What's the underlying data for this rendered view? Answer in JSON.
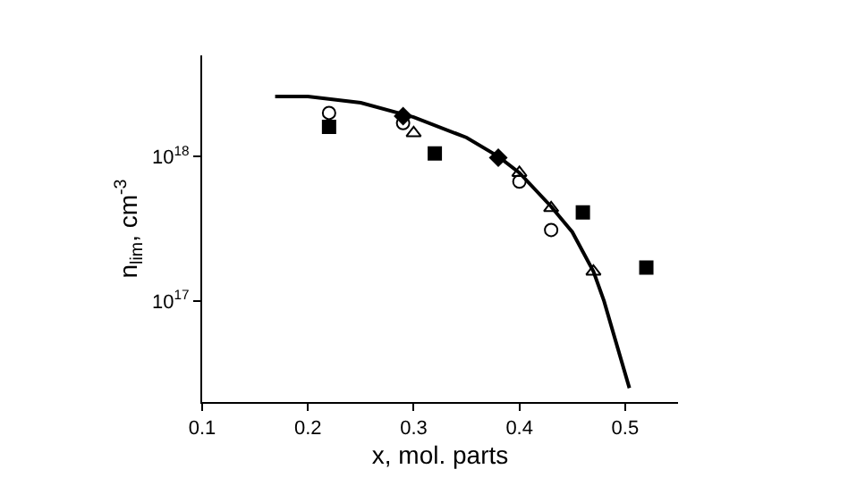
{
  "chart_data": {
    "type": "scatter",
    "xlabel": "x, mol. parts",
    "ylabel": "n$_{lim}$, cm$^{-3}$",
    "log": "y",
    "grid": false,
    "xlim": [
      0.1,
      0.55
    ],
    "xticks": [
      0.1,
      0.2,
      0.3,
      0.4,
      0.5
    ],
    "ylim": [
      2e+16,
      5e+18
    ],
    "yticks": [
      {
        "value": 1e+17,
        "label": "10$^{17}$"
      },
      {
        "value": 1e+18,
        "label": "10$^{18}$"
      }
    ],
    "series": [
      {
        "type": "line",
        "color": "#000000",
        "marker": "none",
        "line_style": "solid",
        "x": [
          0.169,
          0.2,
          0.25,
          0.3,
          0.35,
          0.38,
          0.4,
          0.43,
          0.45,
          0.47,
          0.48,
          0.49,
          0.504
        ],
        "values": [
          2.6e+18,
          2.6e+18,
          2.35e+18,
          1.87e+18,
          1.35e+18,
          1e+18,
          7.7e+17,
          4.5e+17,
          3e+17,
          1.6e+17,
          1e+17,
          5.6e+16,
          2.5e+16
        ]
      },
      {
        "color": "#000000",
        "marker": "square",
        "x": [
          0.22,
          0.32,
          0.46,
          0.52
        ],
        "values": [
          1.6e+18,
          1.05e+18,
          4.1e+17,
          1.7e+17
        ]
      },
      {
        "color": "#000000",
        "marker": "circle",
        "x": [
          0.22,
          0.29,
          0.4,
          0.43
        ],
        "values": [
          2e+18,
          1.7e+18,
          6.7e+17,
          3.1e+17
        ]
      },
      {
        "color": "#000000",
        "marker": "triangle",
        "x": [
          0.3,
          0.4,
          0.43,
          0.47
        ],
        "values": [
          1.45e+18,
          7.7e+17,
          4.4e+17,
          1.6e+17
        ]
      },
      {
        "color": "#000000",
        "marker": "diamond",
        "x": [
          0.29,
          0.38
        ],
        "values": [
          1.9e+18,
          9.8e+17
        ]
      }
    ]
  }
}
